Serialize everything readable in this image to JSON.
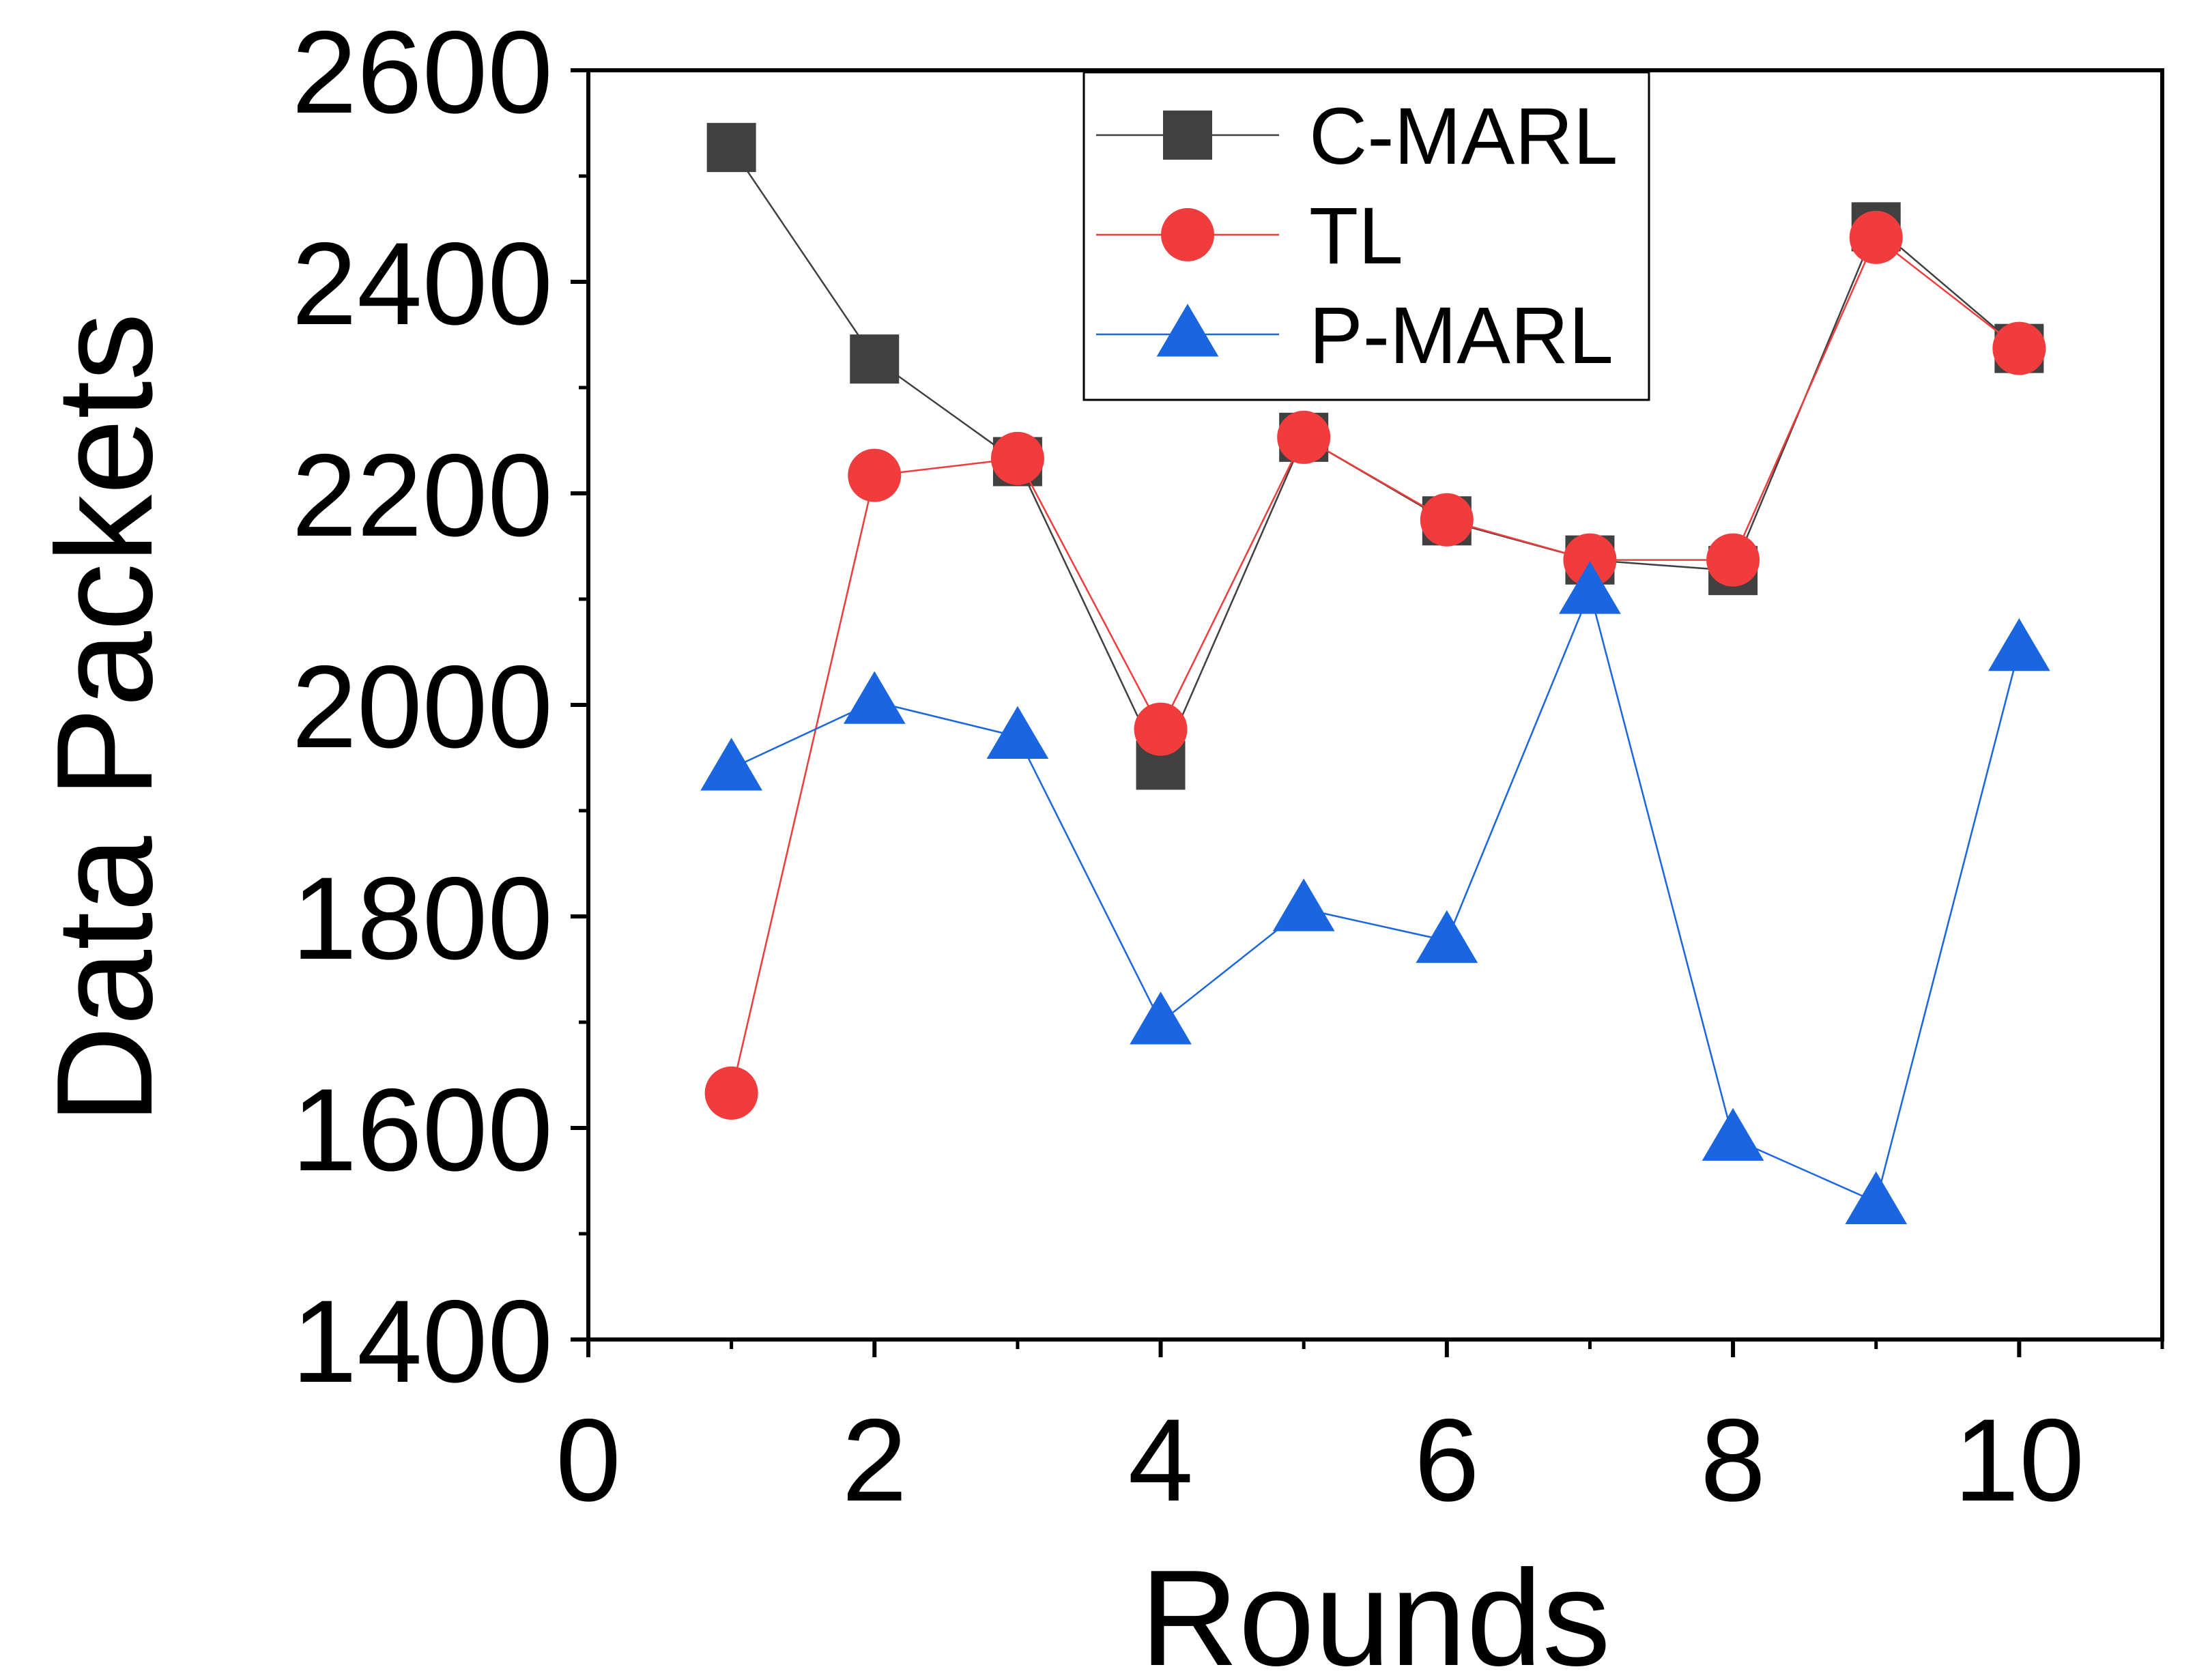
{
  "chart_data": {
    "type": "line",
    "xlabel": "Rounds",
    "ylabel": "Data Packets",
    "xlim": [
      0,
      11
    ],
    "ylim": [
      1400,
      2600
    ],
    "xticks": [
      0,
      2,
      4,
      6,
      8,
      10
    ],
    "yticks": [
      1400,
      1600,
      1800,
      2000,
      2200,
      2400,
      2600
    ],
    "grid": false,
    "legend": "top-center",
    "x": [
      1,
      2,
      3,
      4,
      5,
      6,
      7,
      8,
      9,
      10
    ],
    "series": [
      {
        "name": "C-MARL",
        "marker": "square",
        "color": "#404040",
        "values": [
          2527,
          2327,
          2230,
          1943,
          2253,
          2174,
          2137,
          2127,
          2452,
          2337
        ]
      },
      {
        "name": "TL",
        "marker": "circle",
        "color": "#f03c3c",
        "values": [
          1633,
          2217,
          2233,
          1977,
          2253,
          2175,
          2137,
          2137,
          2442,
          2337
        ]
      },
      {
        "name": "P-MARL",
        "marker": "triangle",
        "color": "#1a66e0",
        "values": [
          1940,
          2003,
          1970,
          1700,
          1807,
          1777,
          2107,
          1590,
          1530,
          2053
        ]
      }
    ]
  }
}
